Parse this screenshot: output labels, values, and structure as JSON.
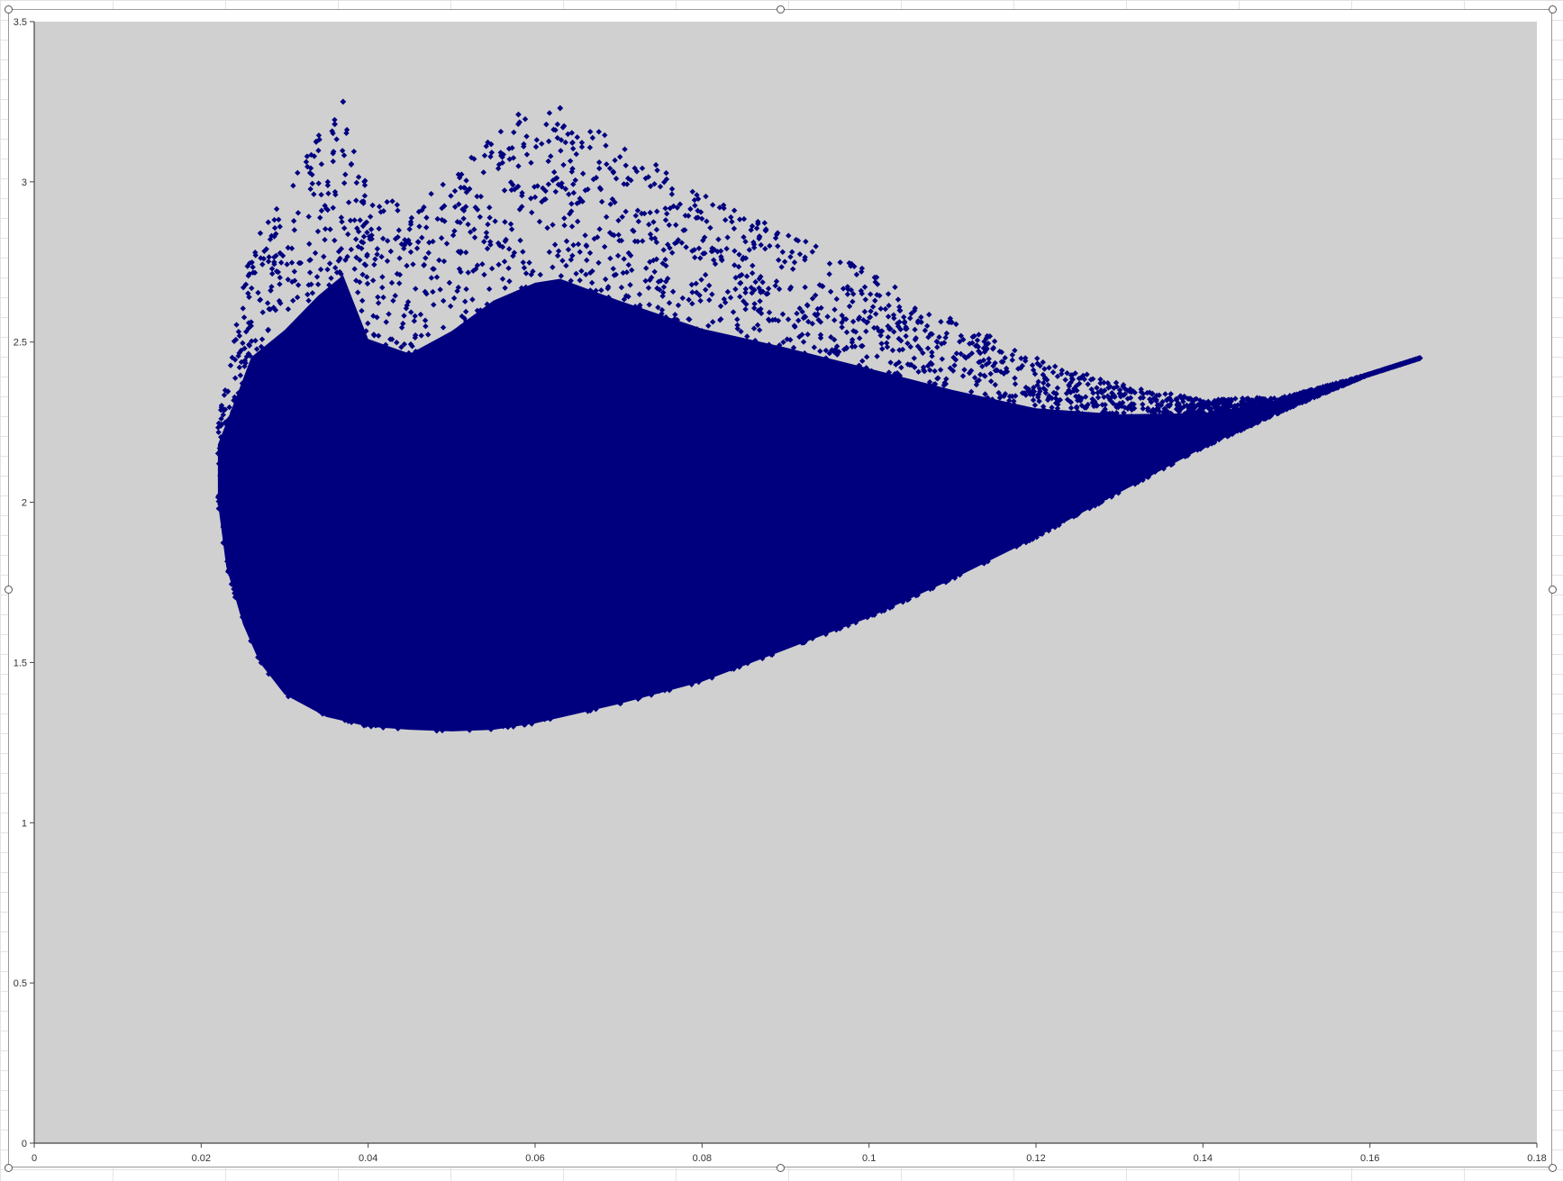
{
  "chart_data": {
    "type": "scatter",
    "title": "",
    "xlabel": "",
    "ylabel": "",
    "xlim": [
      0,
      0.18
    ],
    "ylim": [
      0,
      3.5
    ],
    "x_ticks": [
      "0",
      "0.02",
      "0.04",
      "0.06",
      "0.08",
      "0.1",
      "0.12",
      "0.14",
      "0.16",
      "0.18"
    ],
    "y_ticks": [
      "0",
      "0.5",
      "1",
      "1.5",
      "2",
      "2.5",
      "3",
      "3.5"
    ],
    "grid": false,
    "legend": "none",
    "marker": "diamond",
    "series_color": "#00007F",
    "plot_background": "#D0D0D0",
    "series": [
      {
        "point_count_estimate": 40000,
        "outline_description": "dense cloud; lower boundary from (0.022, 2.0) down to min y≈1.28 near x≈0.05, rising to tip at (0.166, 2.45); upper boundary peaks y≈3.25 near x≈0.037–0.063",
        "lower_boundary": [
          {
            "x": 0.022,
            "y": 2.0
          },
          {
            "x": 0.023,
            "y": 1.8
          },
          {
            "x": 0.025,
            "y": 1.62
          },
          {
            "x": 0.027,
            "y": 1.5
          },
          {
            "x": 0.03,
            "y": 1.4
          },
          {
            "x": 0.035,
            "y": 1.33
          },
          {
            "x": 0.04,
            "y": 1.3
          },
          {
            "x": 0.045,
            "y": 1.29
          },
          {
            "x": 0.05,
            "y": 1.285
          },
          {
            "x": 0.055,
            "y": 1.29
          },
          {
            "x": 0.06,
            "y": 1.31
          },
          {
            "x": 0.07,
            "y": 1.37
          },
          {
            "x": 0.08,
            "y": 1.44
          },
          {
            "x": 0.09,
            "y": 1.54
          },
          {
            "x": 0.1,
            "y": 1.64
          },
          {
            "x": 0.11,
            "y": 1.76
          },
          {
            "x": 0.12,
            "y": 1.89
          },
          {
            "x": 0.13,
            "y": 2.03
          },
          {
            "x": 0.14,
            "y": 2.17
          },
          {
            "x": 0.15,
            "y": 2.29
          },
          {
            "x": 0.16,
            "y": 2.4
          },
          {
            "x": 0.166,
            "y": 2.45
          }
        ],
        "upper_boundary": [
          {
            "x": 0.022,
            "y": 2.0
          },
          {
            "x": 0.022,
            "y": 2.25
          },
          {
            "x": 0.024,
            "y": 2.55
          },
          {
            "x": 0.026,
            "y": 2.8
          },
          {
            "x": 0.03,
            "y": 2.98
          },
          {
            "x": 0.034,
            "y": 3.15
          },
          {
            "x": 0.037,
            "y": 3.25
          },
          {
            "x": 0.04,
            "y": 2.98
          },
          {
            "x": 0.045,
            "y": 2.92
          },
          {
            "x": 0.05,
            "y": 3.02
          },
          {
            "x": 0.055,
            "y": 3.15
          },
          {
            "x": 0.06,
            "y": 3.22
          },
          {
            "x": 0.063,
            "y": 3.23
          },
          {
            "x": 0.07,
            "y": 3.12
          },
          {
            "x": 0.08,
            "y": 2.97
          },
          {
            "x": 0.09,
            "y": 2.85
          },
          {
            "x": 0.1,
            "y": 2.72
          },
          {
            "x": 0.11,
            "y": 2.58
          },
          {
            "x": 0.12,
            "y": 2.45
          },
          {
            "x": 0.13,
            "y": 2.37
          },
          {
            "x": 0.14,
            "y": 2.32
          },
          {
            "x": 0.15,
            "y": 2.33
          },
          {
            "x": 0.16,
            "y": 2.4
          },
          {
            "x": 0.166,
            "y": 2.45
          }
        ],
        "notable_points": [
          {
            "x": 0.037,
            "y": 3.25
          },
          {
            "x": 0.063,
            "y": 3.23
          },
          {
            "x": 0.036,
            "y": 3.18
          },
          {
            "x": 0.058,
            "y": 3.21
          },
          {
            "x": 0.166,
            "y": 2.45
          }
        ]
      }
    ]
  }
}
